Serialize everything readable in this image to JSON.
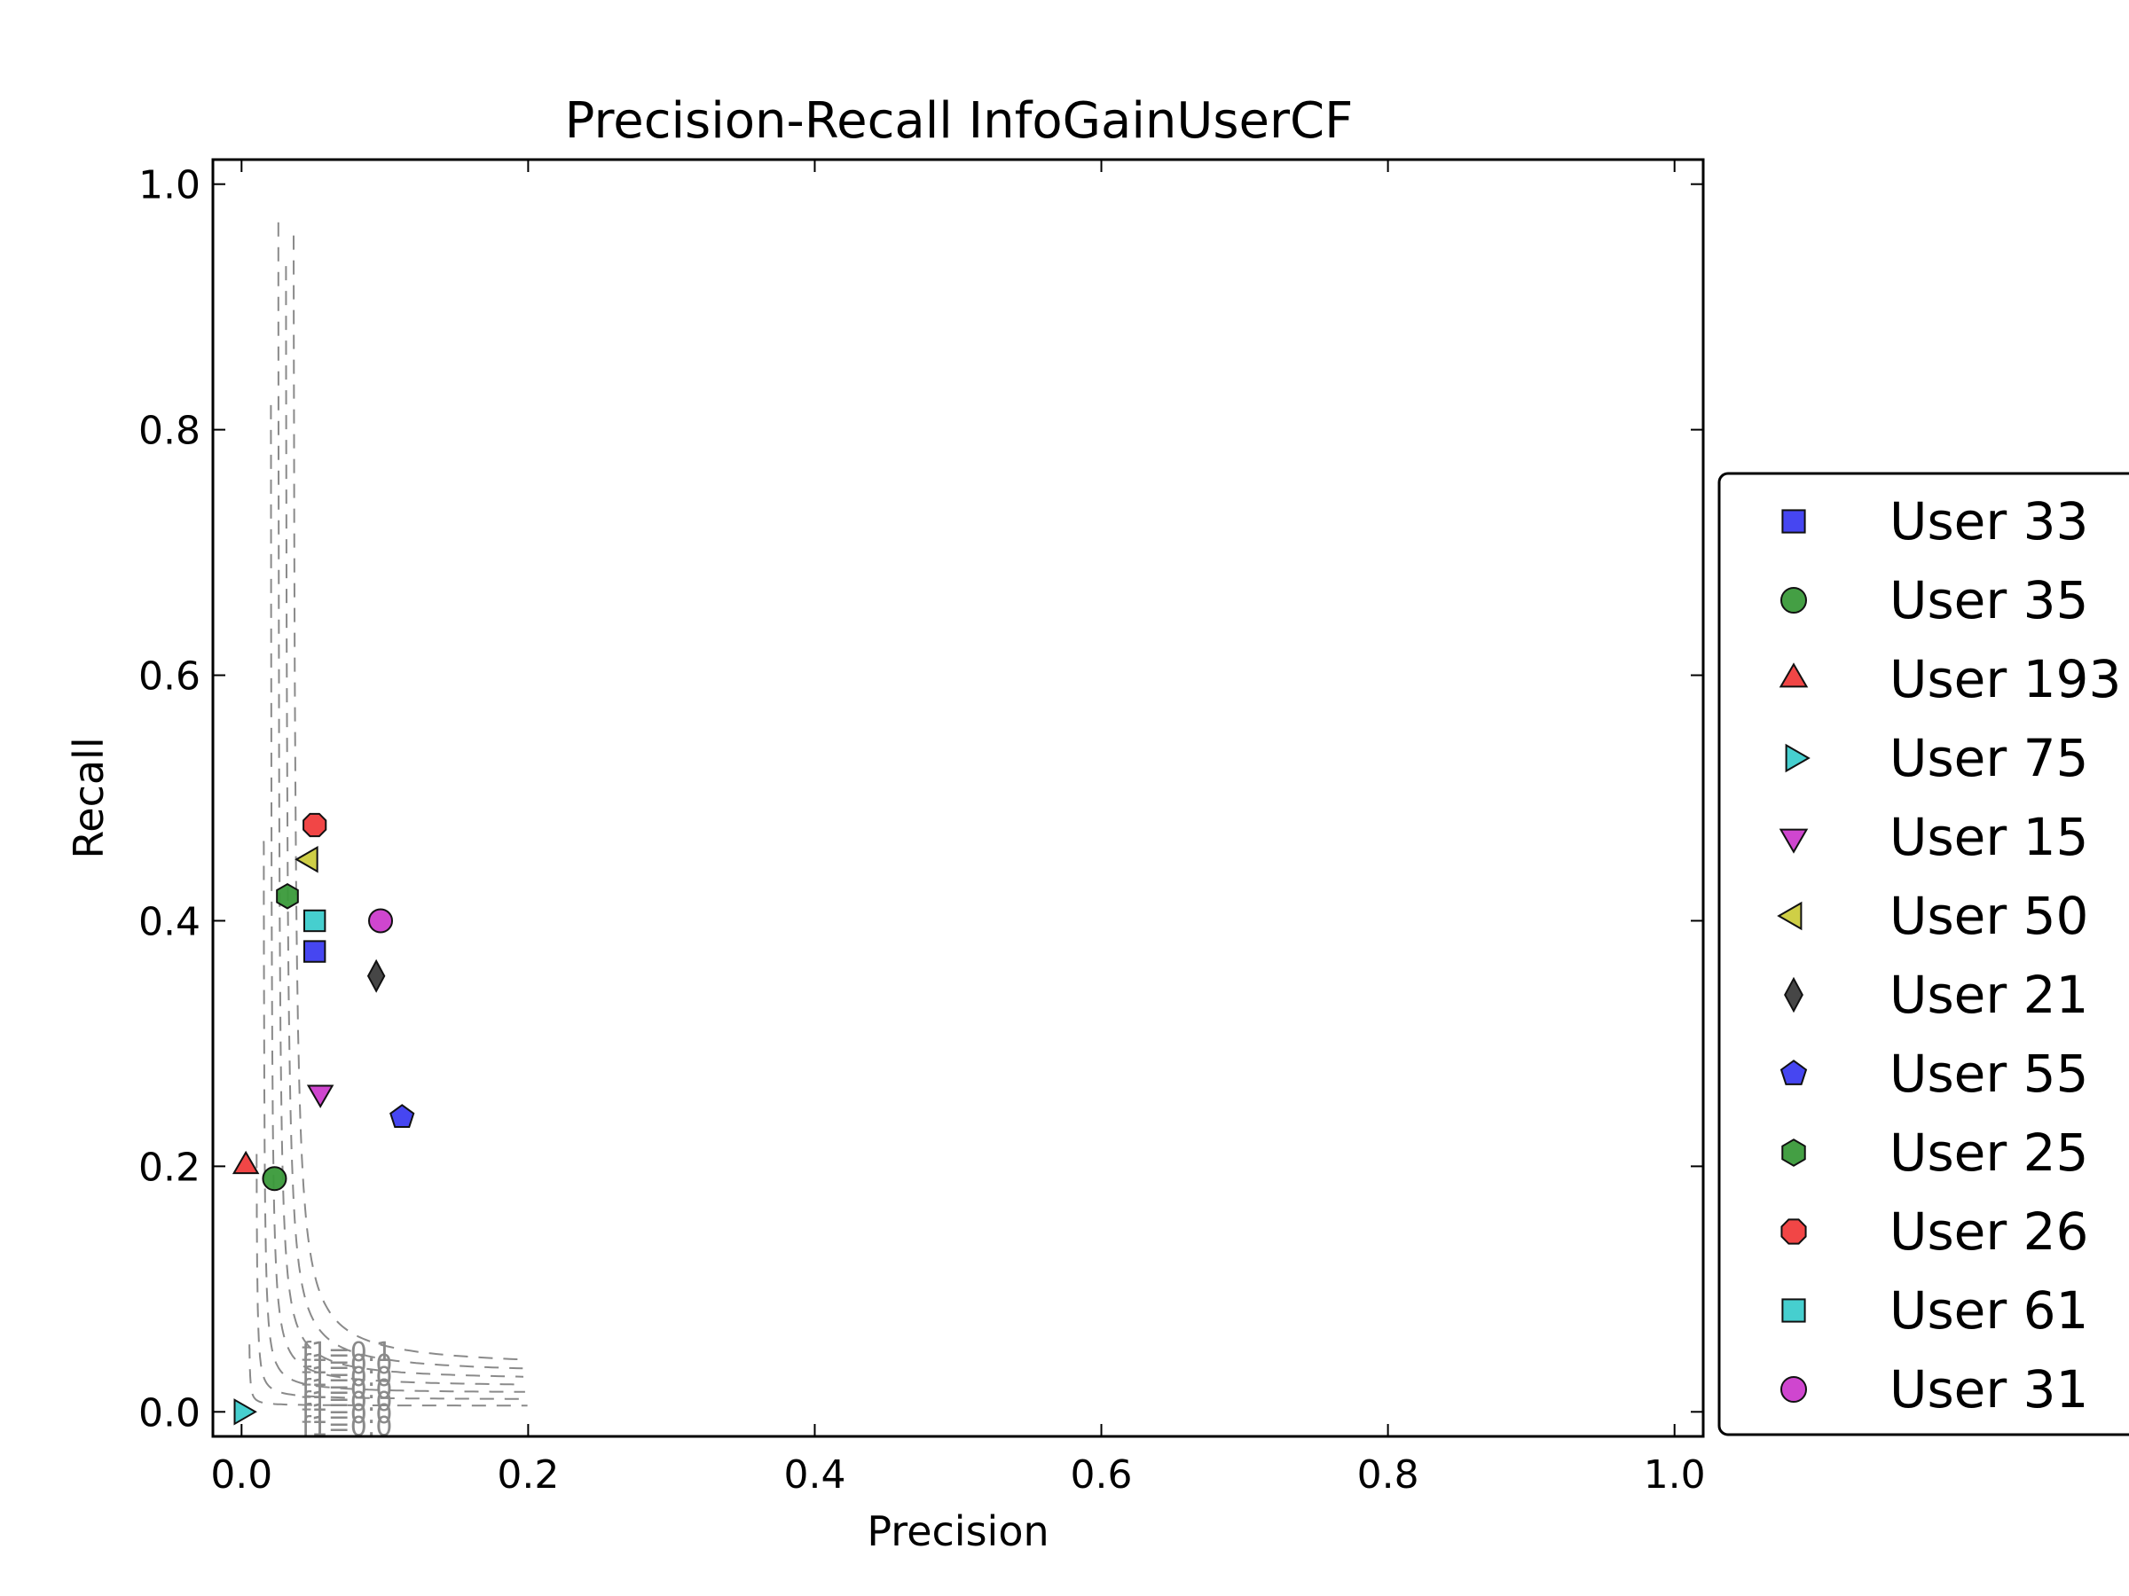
{
  "chart_data": {
    "type": "scatter",
    "title": "Precision-Recall InfoGainUserCF",
    "xlabel": "Precision",
    "ylabel": "Recall",
    "xlim": [
      -0.02,
      1.02
    ],
    "ylim": [
      -0.02,
      1.02
    ],
    "xticks": [
      "0.0",
      "0.2",
      "0.4",
      "0.6",
      "0.8",
      "1.0"
    ],
    "yticks": [
      "0.0",
      "0.2",
      "0.4",
      "0.6",
      "0.8",
      "1.0"
    ],
    "grid": false,
    "legend_position": "right, outside plot",
    "iso_f1_labels": [
      "f1=0.1",
      "f1=0.0",
      "f1=0.0",
      "f1=0.0",
      "f1=0.0",
      "f1=0.0",
      "f1=0.0"
    ],
    "series": [
      {
        "name": "User 33",
        "marker": "square",
        "color": "#3c3cf0",
        "x": 0.051,
        "y": 0.375
      },
      {
        "name": "User 35",
        "marker": "circle",
        "color": "#3a9a3a",
        "x": 0.023,
        "y": 0.19
      },
      {
        "name": "User 193",
        "marker": "triangle-up",
        "color": "#f03c3c",
        "x": 0.003,
        "y": 0.2
      },
      {
        "name": "User 75",
        "marker": "triangle-right",
        "color": "#3ccccc",
        "x": 0.0,
        "y": 0.0
      },
      {
        "name": "User 15",
        "marker": "triangle-down",
        "color": "#cc3ccc",
        "x": 0.055,
        "y": 0.26
      },
      {
        "name": "User 50",
        "marker": "triangle-left",
        "color": "#cccc3c",
        "x": 0.048,
        "y": 0.45
      },
      {
        "name": "User 21",
        "marker": "diamond",
        "color": "#3c3c3c",
        "x": 0.094,
        "y": 0.355
      },
      {
        "name": "User 55",
        "marker": "pentagon",
        "color": "#3c3cf0",
        "x": 0.112,
        "y": 0.24
      },
      {
        "name": "User 25",
        "marker": "hexagon",
        "color": "#3a9a3a",
        "x": 0.032,
        "y": 0.42
      },
      {
        "name": "User 26",
        "marker": "octagon",
        "color": "#f03c3c",
        "x": 0.051,
        "y": 0.478
      },
      {
        "name": "User 61",
        "marker": "square",
        "color": "#3ccccc",
        "x": 0.051,
        "y": 0.4
      },
      {
        "name": "User 31",
        "marker": "circle",
        "color": "#cc3ccc",
        "x": 0.097,
        "y": 0.4
      }
    ]
  }
}
